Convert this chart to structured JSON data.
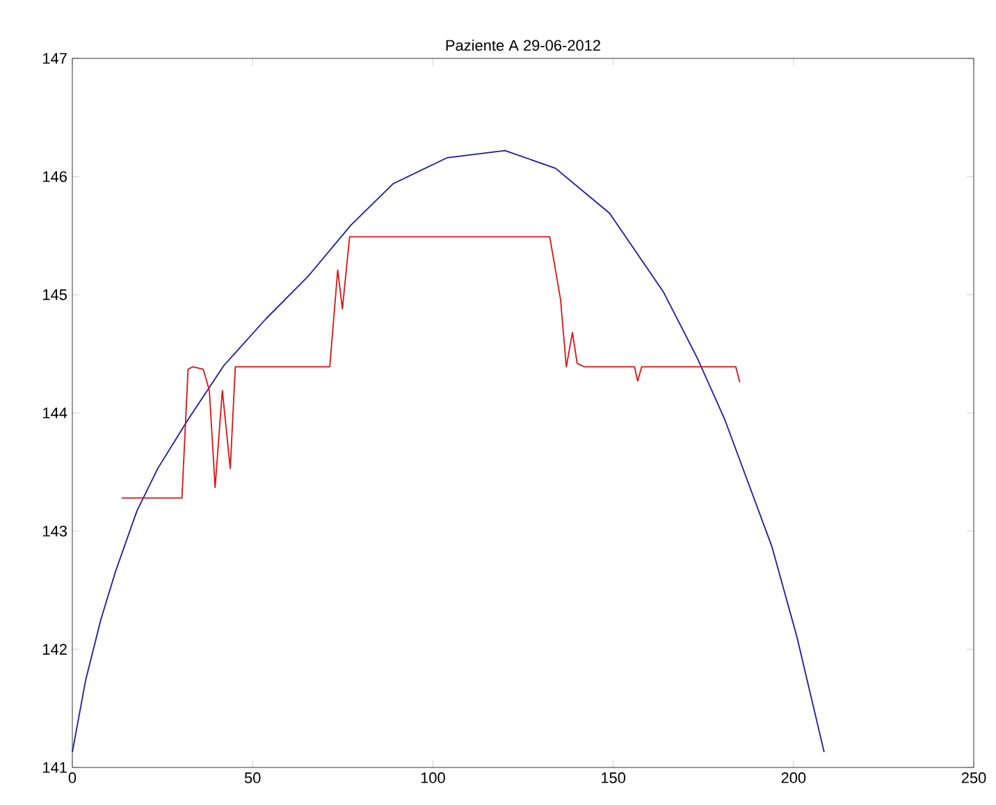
{
  "chart_data": {
    "type": "line",
    "title": "Paziente A 29-06-2012",
    "xlim": [
      0,
      250
    ],
    "ylim": [
      141,
      147
    ],
    "xticks": [
      0,
      50,
      100,
      150,
      200,
      250
    ],
    "yticks": [
      141,
      142,
      143,
      144,
      145,
      146,
      147
    ],
    "grid": false,
    "line_style": "solid",
    "marker": "none",
    "series": [
      {
        "color": "#1a1aa0",
        "x": [
          0,
          3.7,
          7.9,
          12,
          17.9,
          23.7,
          32,
          42,
          53.8,
          65.5,
          77.3,
          89,
          104,
          120,
          134,
          149,
          164,
          173.4,
          181,
          194,
          201,
          208.5
        ],
        "values": [
          141.13,
          141.74,
          142.25,
          142.66,
          143.17,
          143.53,
          143.94,
          144.4,
          144.8,
          145.16,
          145.59,
          145.94,
          146.16,
          146.22,
          146.07,
          145.69,
          145.02,
          144.46,
          143.94,
          142.87,
          142.1,
          141.13
        ]
      },
      {
        "color": "#dd1111",
        "x": [
          13.7,
          30.4,
          32.1,
          33.4,
          36.3,
          38,
          39.6,
          41.6,
          43.8,
          45.2,
          71.4,
          73.6,
          74.9,
          76.9,
          132.4,
          135.4,
          137,
          138.7,
          140,
          142,
          155.9,
          156.8,
          157.9,
          184,
          185.1
        ],
        "values": [
          143.28,
          143.28,
          144.37,
          144.39,
          144.37,
          144.19,
          143.37,
          144.19,
          143.53,
          144.39,
          144.39,
          145.21,
          144.88,
          145.49,
          145.49,
          144.96,
          144.39,
          144.68,
          144.42,
          144.39,
          144.39,
          144.27,
          144.39,
          144.39,
          144.26
        ]
      }
    ]
  }
}
